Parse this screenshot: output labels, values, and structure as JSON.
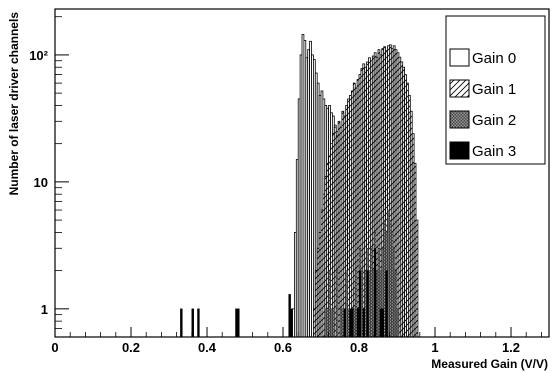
{
  "chart_data": {
    "type": "histogram",
    "xlabel": "Measured Gain (V/V)",
    "ylabel": "Number of laser driver channels",
    "xlim": [
      0,
      1.3
    ],
    "ylim": [
      0.6,
      230
    ],
    "y_scale": "log",
    "x_ticks": [
      "0",
      "0.2",
      "0.4",
      "0.6",
      "0.8",
      "1",
      "1.2"
    ],
    "y_ticks": [
      "1",
      "10",
      "10²"
    ],
    "grid": false,
    "legend_position": "top-right",
    "bin_width": 0.005,
    "series": [
      {
        "name": "Gain 0",
        "fill": "open",
        "bins": [
          [
            0.625,
            1
          ],
          [
            0.63,
            4
          ],
          [
            0.635,
            15
          ],
          [
            0.64,
            45
          ],
          [
            0.645,
            100
          ],
          [
            0.65,
            145
          ],
          [
            0.655,
            130
          ],
          [
            0.66,
            95
          ],
          [
            0.665,
            110
          ],
          [
            0.67,
            128
          ],
          [
            0.675,
            100
          ],
          [
            0.68,
            92
          ],
          [
            0.685,
            72
          ],
          [
            0.69,
            60
          ],
          [
            0.695,
            48
          ],
          [
            0.7,
            52
          ],
          [
            0.705,
            45
          ],
          [
            0.71,
            40
          ],
          [
            0.715,
            38
          ],
          [
            0.72,
            40
          ],
          [
            0.725,
            35
          ],
          [
            0.73,
            33
          ],
          [
            0.735,
            28
          ],
          [
            0.74,
            25
          ],
          [
            0.745,
            20
          ],
          [
            0.75,
            18
          ],
          [
            0.755,
            14
          ],
          [
            0.76,
            11
          ],
          [
            0.765,
            8
          ],
          [
            0.77,
            6
          ],
          [
            0.775,
            5
          ],
          [
            0.78,
            4
          ],
          [
            0.785,
            3
          ],
          [
            0.79,
            2
          ]
        ]
      },
      {
        "name": "Gain 1",
        "fill": "hatched",
        "bins": [
          [
            0.68,
            1
          ],
          [
            0.685,
            2
          ],
          [
            0.69,
            3
          ],
          [
            0.695,
            4
          ],
          [
            0.7,
            6
          ],
          [
            0.705,
            8
          ],
          [
            0.71,
            11
          ],
          [
            0.715,
            14
          ],
          [
            0.72,
            16
          ],
          [
            0.725,
            20
          ],
          [
            0.73,
            24
          ],
          [
            0.735,
            27
          ],
          [
            0.74,
            23
          ],
          [
            0.745,
            30
          ],
          [
            0.75,
            27
          ],
          [
            0.755,
            36
          ],
          [
            0.76,
            33
          ],
          [
            0.765,
            40
          ],
          [
            0.77,
            45
          ],
          [
            0.775,
            48
          ],
          [
            0.78,
            52
          ],
          [
            0.785,
            60
          ],
          [
            0.79,
            55
          ],
          [
            0.795,
            64
          ],
          [
            0.8,
            70
          ],
          [
            0.805,
            78
          ],
          [
            0.81,
            85
          ],
          [
            0.815,
            80
          ],
          [
            0.82,
            88
          ],
          [
            0.825,
            95
          ],
          [
            0.83,
            90
          ],
          [
            0.835,
            98
          ],
          [
            0.84,
            104
          ],
          [
            0.845,
            96
          ],
          [
            0.85,
            110
          ],
          [
            0.855,
            100
          ],
          [
            0.86,
            112
          ],
          [
            0.865,
            116
          ],
          [
            0.87,
            108
          ],
          [
            0.875,
            118
          ],
          [
            0.88,
            120
          ],
          [
            0.885,
            112
          ],
          [
            0.89,
            118
          ],
          [
            0.895,
            110
          ],
          [
            0.9,
            104
          ],
          [
            0.905,
            96
          ],
          [
            0.91,
            88
          ],
          [
            0.915,
            80
          ],
          [
            0.92,
            70
          ],
          [
            0.925,
            60
          ],
          [
            0.93,
            48
          ],
          [
            0.935,
            36
          ],
          [
            0.94,
            24
          ],
          [
            0.945,
            14
          ],
          [
            0.95,
            5
          ]
        ]
      },
      {
        "name": "Gain 2",
        "fill": "dense",
        "bins": [
          [
            0.71,
            1
          ],
          [
            0.715,
            1
          ],
          [
            0.72,
            2
          ],
          [
            0.725,
            1
          ],
          [
            0.73,
            1
          ],
          [
            0.74,
            2
          ],
          [
            0.75,
            1
          ],
          [
            0.755,
            1
          ],
          [
            0.765,
            2
          ],
          [
            0.77,
            1
          ],
          [
            0.78,
            1
          ],
          [
            0.785,
            1
          ],
          [
            0.79,
            2
          ],
          [
            0.795,
            1
          ],
          [
            0.8,
            3
          ],
          [
            0.805,
            2
          ],
          [
            0.81,
            1
          ],
          [
            0.815,
            2
          ],
          [
            0.82,
            3
          ],
          [
            0.825,
            2
          ],
          [
            0.83,
            3
          ],
          [
            0.835,
            2
          ],
          [
            0.84,
            4
          ],
          [
            0.845,
            2
          ],
          [
            0.85,
            3
          ],
          [
            0.855,
            2
          ],
          [
            0.86,
            3
          ],
          [
            0.865,
            5
          ],
          [
            0.87,
            4
          ],
          [
            0.875,
            6
          ],
          [
            0.88,
            5
          ],
          [
            0.885,
            4
          ],
          [
            0.89,
            3
          ],
          [
            0.895,
            2
          ],
          [
            0.9,
            1
          ]
        ]
      },
      {
        "name": "Gain 3",
        "fill": "solid",
        "bins": [
          [
            0.33,
            1
          ],
          [
            0.36,
            1
          ],
          [
            0.375,
            1
          ],
          [
            0.475,
            1
          ],
          [
            0.48,
            1
          ],
          [
            0.615,
            1.3
          ],
          [
            0.62,
            1
          ],
          [
            0.76,
            1
          ],
          [
            0.775,
            1
          ],
          [
            0.78,
            1
          ],
          [
            0.795,
            1
          ],
          [
            0.8,
            2
          ],
          [
            0.81,
            1
          ],
          [
            0.82,
            2
          ],
          [
            0.84,
            3
          ],
          [
            0.855,
            1
          ],
          [
            0.86,
            1
          ],
          [
            0.87,
            2
          ]
        ]
      }
    ]
  },
  "colors": {
    "frame": "#000000",
    "background": "#ffffff",
    "gain3": "#000000",
    "gain2": "#555555"
  }
}
